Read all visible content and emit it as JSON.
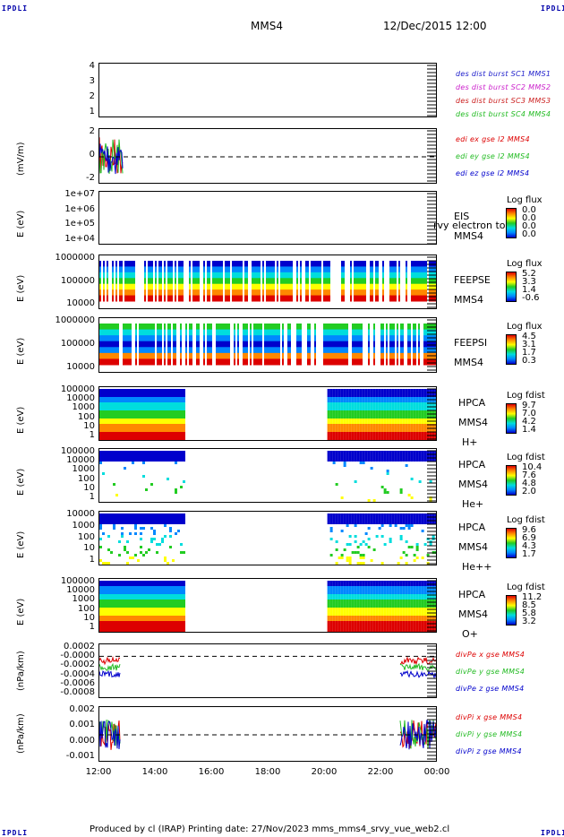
{
  "corners": {
    "label": "IPDLI"
  },
  "header": {
    "title": "MMS4",
    "datetime": "12/Dec/2015 12:00"
  },
  "footer": {
    "text": "Produced by cl (IRAP)   Printing date: 27/Nov/2023   mms_mms4_srvy_vue_web2.cl"
  },
  "x_axis": {
    "ticks": [
      "12:00",
      "14:00",
      "16:00",
      "18:00",
      "20:00",
      "22:00",
      "00:00"
    ]
  },
  "panels": [
    {
      "id": "burst",
      "ylabel": "",
      "yticks": [
        "4",
        "3",
        "2",
        "1"
      ],
      "legend": [
        {
          "text": "des dist burst SC1 MMS1",
          "color": "#2222cc"
        },
        {
          "text": "des dist burst SC2 MMS2",
          "color": "#cc22cc"
        },
        {
          "text": "des dist burst SC3 MMS3",
          "color": "#cc2222"
        },
        {
          "text": "des dist burst SC4 MMS4",
          "color": "#22bb22"
        }
      ]
    },
    {
      "id": "edi",
      "ylabel": "(mV/m)",
      "yticks": [
        "2",
        "0",
        "-2"
      ],
      "legend": [
        {
          "text": "edi ex gse l2 MMS4",
          "color": "#dd0000"
        },
        {
          "text": "edi ey gse l2 MMS4",
          "color": "#22bb22"
        },
        {
          "text": "edi ez gse l2 MMS4",
          "color": "#0000cc"
        }
      ]
    },
    {
      "id": "eis",
      "ylabel": "E (eV)",
      "yticks": [
        "1e+07",
        "1e+06",
        "1e+05",
        "1e+04"
      ],
      "labels": [
        "EIS",
        "MMS4"
      ],
      "overlay": "rvy electron to",
      "cbar": {
        "title": "Log flux",
        "values": [
          "0.0",
          "0.0",
          "0.0",
          "0.0"
        ]
      }
    },
    {
      "id": "feepse",
      "ylabel": "E (eV)",
      "yticks": [
        "1000000",
        "100000",
        "10000"
      ],
      "labels": [
        "FEEPSE",
        "MMS4"
      ],
      "cbar": {
        "title": "Log flux",
        "values": [
          "5.2",
          "3.3",
          "1.4",
          "-0.6"
        ]
      }
    },
    {
      "id": "feepsi",
      "ylabel": "E (eV)",
      "yticks": [
        "1000000",
        "100000",
        "10000"
      ],
      "labels": [
        "FEEPSI",
        "MMS4"
      ],
      "cbar": {
        "title": "Log flux",
        "values": [
          "4.5",
          "3.1",
          "1.7",
          "0.3"
        ]
      }
    },
    {
      "id": "hpca_h",
      "ylabel": "E (eV)",
      "yticks": [
        "100000",
        "10000",
        "1000",
        "100",
        "10",
        "1"
      ],
      "labels": [
        "HPCA",
        "MMS4",
        "H+"
      ],
      "cbar": {
        "title": "Log fdist",
        "values": [
          "9.7",
          "7.0",
          "4.2",
          "1.4"
        ]
      }
    },
    {
      "id": "hpca_he",
      "ylabel": "E (eV)",
      "yticks": [
        "100000",
        "10000",
        "1000",
        "100",
        "10",
        "1"
      ],
      "labels": [
        "HPCA",
        "MMS4",
        "He+"
      ],
      "cbar": {
        "title": "Log fdist",
        "values": [
          "10.4",
          "7.6",
          "4.8",
          "2.0"
        ]
      }
    },
    {
      "id": "hpca_hepp",
      "ylabel": "E (eV)",
      "yticks": [
        "10000",
        "1000",
        "100",
        "10",
        "1"
      ],
      "labels": [
        "HPCA",
        "MMS4",
        "He++"
      ],
      "cbar": {
        "title": "Log fdist",
        "values": [
          "9.6",
          "6.9",
          "4.3",
          "1.7"
        ]
      }
    },
    {
      "id": "hpca_o",
      "ylabel": "E (eV)",
      "yticks": [
        "100000",
        "10000",
        "1000",
        "100",
        "10",
        "1"
      ],
      "labels": [
        "HPCA",
        "MMS4",
        "O+"
      ],
      "cbar": {
        "title": "Log fdist",
        "values": [
          "11.2",
          "8.5",
          "5.8",
          "3.2"
        ]
      }
    },
    {
      "id": "divpe",
      "ylabel": "(nPa/km)",
      "yticks": [
        "0.0002",
        "-0.0000",
        "-0.0002",
        "-0.0004",
        "-0.0006",
        "-0.0008"
      ],
      "legend": [
        {
          "text": "divPe x gse MMS4",
          "color": "#dd0000"
        },
        {
          "text": "divPe y gse MMS4",
          "color": "#22bb22"
        },
        {
          "text": "divPe z gse MMS4",
          "color": "#0000cc"
        }
      ]
    },
    {
      "id": "divpi",
      "ylabel": "(nPa/km)",
      "yticks": [
        "0.002",
        "0.001",
        "0.000",
        "-0.001"
      ],
      "legend": [
        {
          "text": "divPi x gse MMS4",
          "color": "#dd0000"
        },
        {
          "text": "divPi y gse MMS4",
          "color": "#22bb22"
        },
        {
          "text": "divPi z gse MMS4",
          "color": "#0000cc"
        }
      ]
    }
  ],
  "chart_data": {
    "type": "heatmap",
    "title": "MMS4",
    "x_range": [
      "12:00",
      "00:00"
    ],
    "xticks": [
      "12:00",
      "14:00",
      "16:00",
      "18:00",
      "20:00",
      "22:00",
      "00:00"
    ],
    "data_coverage": {
      "edi": [
        [
          "12:00",
          "12:50"
        ]
      ],
      "feepse": [
        [
          "12:00",
          "00:00"
        ]
      ],
      "feepsi": [
        [
          "12:00",
          "00:00"
        ]
      ],
      "hpca": [
        [
          "12:00",
          "15:00"
        ],
        [
          "20:05",
          "00:00"
        ]
      ],
      "divpe": [
        [
          "12:00",
          "12:45"
        ],
        [
          "22:40",
          "00:00"
        ]
      ],
      "divpi": [
        [
          "12:00",
          "12:45"
        ],
        [
          "22:40",
          "00:00"
        ]
      ]
    },
    "colormap": [
      "#0000cc",
      "#0088ff",
      "#00dddd",
      "#22cc22",
      "#ffff00",
      "#ff8800",
      "#dd0000"
    ]
  }
}
